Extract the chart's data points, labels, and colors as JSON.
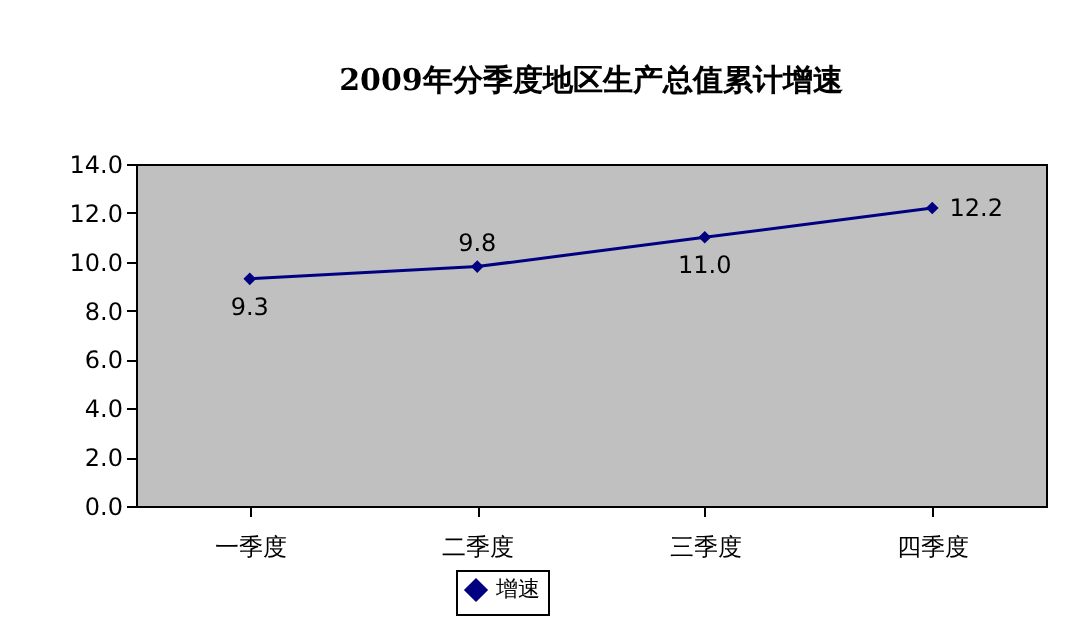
{
  "chart_data": {
    "type": "line",
    "title": "2009年分季度地区生产总值累计增速",
    "categories": [
      "一季度",
      "二季度",
      "三季度",
      "四季度"
    ],
    "series": [
      {
        "name": "增速",
        "color": "#000080",
        "values": [
          9.3,
          9.8,
          11.0,
          12.2
        ]
      }
    ],
    "ylim": [
      0,
      14
    ],
    "yticks": [
      {
        "value": 0,
        "label": "0.0"
      },
      {
        "value": 2,
        "label": "2.0"
      },
      {
        "value": 4,
        "label": "4.0"
      },
      {
        "value": 6,
        "label": "6.0"
      },
      {
        "value": 8,
        "label": "8.0"
      },
      {
        "value": 10,
        "label": "10.0"
      },
      {
        "value": 12,
        "label": "12.0"
      },
      {
        "value": 14,
        "label": "14.0"
      }
    ],
    "value_labels": [
      "9.3",
      "9.8",
      "11.0",
      "12.2"
    ],
    "legend": "bottom",
    "marker": "diamond",
    "grid": false
  }
}
